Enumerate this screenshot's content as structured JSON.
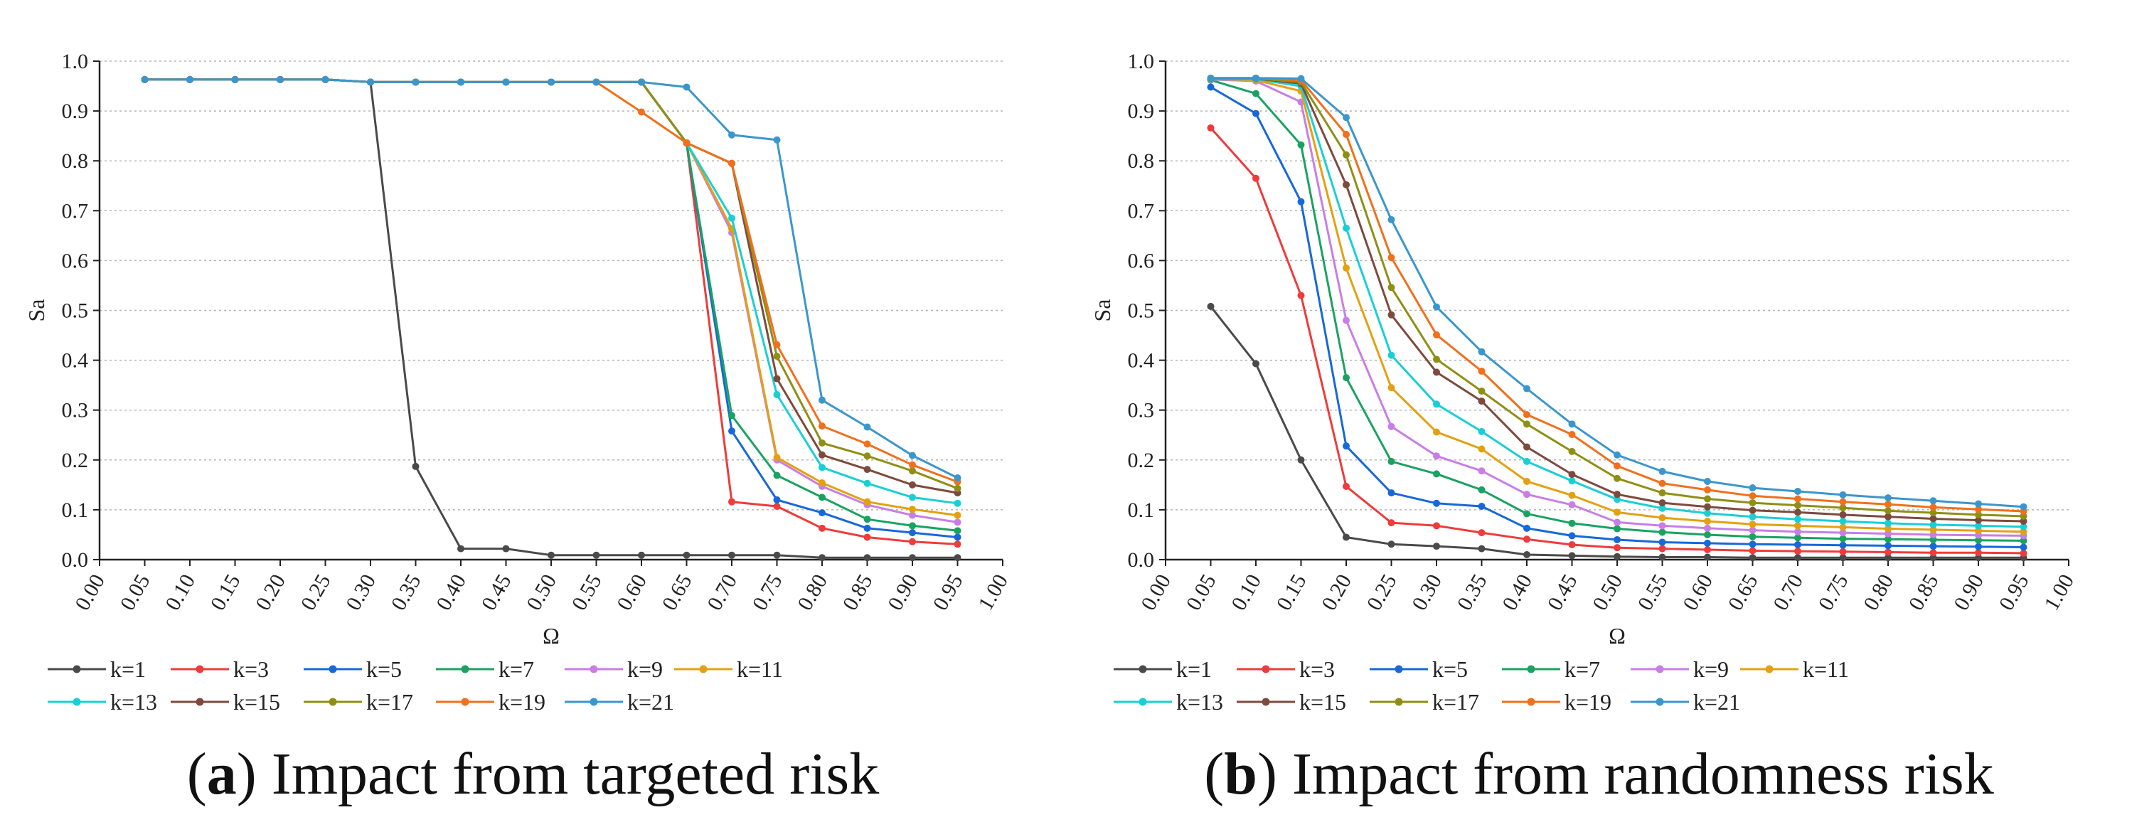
{
  "legend_labels": [
    "k=1",
    "k=3",
    "k=5",
    "k=7",
    "k=9",
    "k=11",
    "k=13",
    "k=15",
    "k=17",
    "k=19",
    "k=21"
  ],
  "series_colors": [
    "#4a4a4a",
    "#ef3b3b",
    "#1768d9",
    "#1aa262",
    "#c87ee6",
    "#e3a111",
    "#19cfd6",
    "#7d4a3d",
    "#8f8f16",
    "#f0701d",
    "#3b96cc"
  ],
  "chart_data": [
    {
      "type": "line",
      "title": "",
      "xlabel": "Ω",
      "ylabel": "Sa",
      "xlim": [
        0,
        1
      ],
      "ylim": [
        0,
        1
      ],
      "x_ticks": [
        "0.00",
        "0.05",
        "0.10",
        "0.15",
        "0.20",
        "0.25",
        "0.30",
        "0.35",
        "0.40",
        "0.45",
        "0.50",
        "0.55",
        "0.60",
        "0.65",
        "0.70",
        "0.75",
        "0.80",
        "0.85",
        "0.90",
        "0.95",
        "1.00"
      ],
      "y_ticks": [
        "0.0",
        "0.1",
        "0.2",
        "0.3",
        "0.4",
        "0.5",
        "0.6",
        "0.7",
        "0.8",
        "0.9",
        "1.0"
      ],
      "grid": "horizontal",
      "legend": "bottom",
      "x": [
        0.05,
        0.1,
        0.15,
        0.2,
        0.25,
        0.3,
        0.35,
        0.4,
        0.45,
        0.5,
        0.55,
        0.6,
        0.65,
        0.7,
        0.75,
        0.8,
        0.85,
        0.9,
        0.95
      ],
      "series": [
        {
          "name": "k=1",
          "values": [
            0.963,
            0.963,
            0.963,
            0.963,
            0.963,
            0.958,
            0.187,
            0.022,
            0.022,
            0.009,
            0.009,
            0.009,
            0.009,
            0.009,
            0.009,
            0.004,
            0.004,
            0.004,
            0.004
          ]
        },
        {
          "name": "k=3",
          "values": [
            0.963,
            0.963,
            0.963,
            0.963,
            0.963,
            0.958,
            0.958,
            0.958,
            0.958,
            0.958,
            0.958,
            0.958,
            0.836,
            0.116,
            0.107,
            0.063,
            0.045,
            0.036,
            0.031
          ]
        },
        {
          "name": "k=5",
          "values": [
            0.963,
            0.963,
            0.963,
            0.963,
            0.963,
            0.958,
            0.958,
            0.958,
            0.958,
            0.958,
            0.958,
            0.958,
            0.836,
            0.258,
            0.12,
            0.094,
            0.063,
            0.054,
            0.045
          ]
        },
        {
          "name": "k=7",
          "values": [
            0.963,
            0.963,
            0.963,
            0.963,
            0.963,
            0.958,
            0.958,
            0.958,
            0.958,
            0.958,
            0.958,
            0.958,
            0.836,
            0.289,
            0.169,
            0.125,
            0.081,
            0.068,
            0.058
          ]
        },
        {
          "name": "k=9",
          "values": [
            0.963,
            0.963,
            0.963,
            0.963,
            0.963,
            0.958,
            0.958,
            0.958,
            0.958,
            0.958,
            0.958,
            0.958,
            0.836,
            0.656,
            0.2,
            0.147,
            0.11,
            0.089,
            0.075
          ]
        },
        {
          "name": "k=11",
          "values": [
            0.963,
            0.963,
            0.963,
            0.963,
            0.963,
            0.958,
            0.958,
            0.958,
            0.958,
            0.958,
            0.958,
            0.958,
            0.836,
            0.664,
            0.205,
            0.154,
            0.116,
            0.101,
            0.089
          ]
        },
        {
          "name": "k=13",
          "values": [
            0.963,
            0.963,
            0.963,
            0.963,
            0.963,
            0.958,
            0.958,
            0.958,
            0.958,
            0.958,
            0.958,
            0.958,
            0.836,
            0.685,
            0.331,
            0.185,
            0.153,
            0.125,
            0.113
          ]
        },
        {
          "name": "k=15",
          "values": [
            0.963,
            0.963,
            0.963,
            0.963,
            0.963,
            0.958,
            0.958,
            0.958,
            0.958,
            0.958,
            0.958,
            0.958,
            0.836,
            0.795,
            0.363,
            0.21,
            0.181,
            0.15,
            0.134
          ]
        },
        {
          "name": "k=17",
          "values": [
            0.963,
            0.963,
            0.963,
            0.963,
            0.963,
            0.958,
            0.958,
            0.958,
            0.958,
            0.958,
            0.958,
            0.958,
            0.836,
            0.795,
            0.408,
            0.234,
            0.208,
            0.178,
            0.143
          ]
        },
        {
          "name": "k=19",
          "values": [
            0.963,
            0.963,
            0.963,
            0.963,
            0.963,
            0.958,
            0.958,
            0.958,
            0.958,
            0.958,
            0.958,
            0.898,
            0.836,
            0.795,
            0.431,
            0.268,
            0.232,
            0.19,
            0.156
          ]
        },
        {
          "name": "k=21",
          "values": [
            0.963,
            0.963,
            0.963,
            0.963,
            0.963,
            0.958,
            0.958,
            0.958,
            0.958,
            0.958,
            0.958,
            0.958,
            0.948,
            0.852,
            0.842,
            0.32,
            0.266,
            0.209,
            0.164
          ]
        }
      ],
      "caption_letter": "a",
      "caption_text": ") Impact from targeted risk"
    },
    {
      "type": "line",
      "title": "",
      "xlabel": "Ω",
      "ylabel": "Sa",
      "xlim": [
        0,
        1
      ],
      "ylim": [
        0,
        1
      ],
      "x_ticks": [
        "0.00",
        "0.05",
        "0.10",
        "0.15",
        "0.20",
        "0.25",
        "0.30",
        "0.35",
        "0.40",
        "0.45",
        "0.50",
        "0.55",
        "0.60",
        "0.65",
        "0.70",
        "0.75",
        "0.80",
        "0.85",
        "0.90",
        "0.95",
        "1.00"
      ],
      "y_ticks": [
        "0.0",
        "0.1",
        "0.2",
        "0.3",
        "0.4",
        "0.5",
        "0.6",
        "0.7",
        "0.8",
        "0.9",
        "1.0"
      ],
      "grid": "horizontal",
      "legend": "bottom",
      "x": [
        0.05,
        0.1,
        0.15,
        0.2,
        0.25,
        0.3,
        0.35,
        0.4,
        0.45,
        0.5,
        0.55,
        0.6,
        0.65,
        0.7,
        0.75,
        0.8,
        0.85,
        0.9,
        0.95
      ],
      "series": [
        {
          "name": "k=1",
          "values": [
            0.508,
            0.393,
            0.2,
            0.045,
            0.031,
            0.027,
            0.022,
            0.01,
            0.008,
            0.006,
            0.005,
            0.005,
            0.004,
            0.004,
            0.004,
            0.004,
            0.004,
            0.004,
            0.004
          ]
        },
        {
          "name": "k=3",
          "values": [
            0.866,
            0.765,
            0.53,
            0.147,
            0.074,
            0.068,
            0.054,
            0.041,
            0.03,
            0.024,
            0.022,
            0.02,
            0.018,
            0.017,
            0.016,
            0.015,
            0.014,
            0.014,
            0.013
          ]
        },
        {
          "name": "k=5",
          "values": [
            0.948,
            0.895,
            0.718,
            0.228,
            0.134,
            0.113,
            0.107,
            0.063,
            0.048,
            0.04,
            0.035,
            0.033,
            0.031,
            0.03,
            0.029,
            0.028,
            0.027,
            0.026,
            0.025
          ]
        },
        {
          "name": "k=7",
          "values": [
            0.962,
            0.935,
            0.832,
            0.365,
            0.197,
            0.172,
            0.14,
            0.092,
            0.073,
            0.062,
            0.055,
            0.05,
            0.046,
            0.044,
            0.042,
            0.041,
            0.04,
            0.039,
            0.038
          ]
        },
        {
          "name": "k=9",
          "values": [
            0.963,
            0.96,
            0.918,
            0.48,
            0.267,
            0.208,
            0.178,
            0.131,
            0.11,
            0.075,
            0.068,
            0.063,
            0.059,
            0.056,
            0.054,
            0.052,
            0.05,
            0.049,
            0.048
          ]
        },
        {
          "name": "k=11",
          "values": [
            0.964,
            0.962,
            0.94,
            0.585,
            0.345,
            0.256,
            0.222,
            0.157,
            0.129,
            0.095,
            0.084,
            0.077,
            0.071,
            0.068,
            0.065,
            0.062,
            0.06,
            0.058,
            0.056
          ]
        },
        {
          "name": "k=13",
          "values": [
            0.964,
            0.964,
            0.95,
            0.665,
            0.41,
            0.312,
            0.257,
            0.197,
            0.158,
            0.121,
            0.103,
            0.093,
            0.086,
            0.081,
            0.077,
            0.073,
            0.07,
            0.068,
            0.066
          ]
        },
        {
          "name": "k=15",
          "values": [
            0.965,
            0.965,
            0.955,
            0.752,
            0.491,
            0.376,
            0.318,
            0.226,
            0.171,
            0.131,
            0.114,
            0.106,
            0.099,
            0.095,
            0.09,
            0.086,
            0.082,
            0.079,
            0.077
          ]
        },
        {
          "name": "k=17",
          "values": [
            0.965,
            0.965,
            0.958,
            0.812,
            0.546,
            0.402,
            0.338,
            0.272,
            0.217,
            0.163,
            0.134,
            0.122,
            0.114,
            0.109,
            0.104,
            0.098,
            0.094,
            0.09,
            0.087
          ]
        },
        {
          "name": "k=19",
          "values": [
            0.966,
            0.966,
            0.962,
            0.853,
            0.606,
            0.451,
            0.378,
            0.291,
            0.251,
            0.188,
            0.153,
            0.14,
            0.128,
            0.122,
            0.116,
            0.111,
            0.105,
            0.101,
            0.097
          ]
        },
        {
          "name": "k=21",
          "values": [
            0.966,
            0.966,
            0.965,
            0.887,
            0.682,
            0.507,
            0.417,
            0.343,
            0.272,
            0.21,
            0.177,
            0.157,
            0.144,
            0.137,
            0.13,
            0.124,
            0.118,
            0.112,
            0.106
          ]
        }
      ],
      "caption_letter": "b",
      "caption_text": ") Impact from randomness risk"
    }
  ]
}
